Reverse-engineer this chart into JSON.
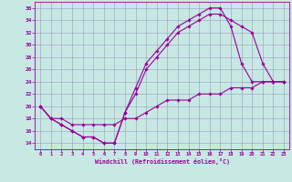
{
  "background_color": "#c8e8e4",
  "grid_color": "#9999bb",
  "line_color": "#990099",
  "xlabel": "Windchill (Refroidissement éolien,°C)",
  "xlim": [
    -0.5,
    23.5
  ],
  "ylim": [
    13.0,
    37.0
  ],
  "x_ticks": [
    0,
    1,
    2,
    3,
    4,
    5,
    6,
    7,
    8,
    9,
    10,
    11,
    12,
    13,
    14,
    15,
    16,
    17,
    18,
    19,
    20,
    21,
    22,
    23
  ],
  "y_ticks": [
    14,
    16,
    18,
    20,
    22,
    24,
    26,
    28,
    30,
    32,
    34,
    36
  ],
  "line1_x": [
    0,
    1,
    2,
    3,
    4,
    5,
    6,
    7,
    8,
    9,
    10,
    11,
    12,
    13,
    14,
    15,
    16,
    17,
    18,
    19,
    20,
    21,
    22,
    23
  ],
  "line1_y": [
    20,
    18,
    17,
    16,
    15,
    15,
    14,
    14,
    19,
    23,
    27,
    29,
    31,
    33,
    34,
    35,
    36,
    36,
    33,
    27,
    24,
    24,
    24,
    24
  ],
  "line2_x": [
    0,
    1,
    2,
    3,
    4,
    5,
    6,
    7,
    8,
    9,
    10,
    11,
    12,
    13,
    14,
    15,
    16,
    17,
    18,
    19,
    20,
    21,
    22,
    23
  ],
  "line2_y": [
    20,
    18,
    17,
    16,
    15,
    15,
    14,
    14,
    19,
    22,
    26,
    28,
    30,
    32,
    33,
    34,
    35,
    35,
    34,
    33,
    32,
    27,
    24,
    24
  ],
  "line3_x": [
    0,
    1,
    2,
    3,
    4,
    5,
    6,
    7,
    8,
    9,
    10,
    11,
    12,
    13,
    14,
    15,
    16,
    17,
    18,
    19,
    20,
    21,
    22,
    23
  ],
  "line3_y": [
    20,
    18,
    18,
    17,
    17,
    17,
    17,
    17,
    18,
    18,
    19,
    20,
    21,
    21,
    21,
    22,
    22,
    22,
    23,
    23,
    23,
    24,
    24,
    24
  ]
}
